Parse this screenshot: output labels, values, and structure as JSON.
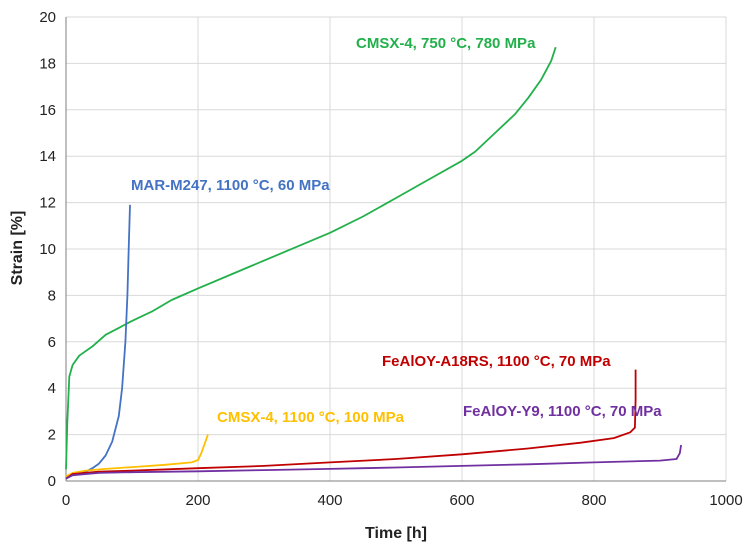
{
  "chart_data": {
    "type": "line",
    "title": "",
    "xlabel": "Time [h]",
    "ylabel": "Strain [%]",
    "xlim": [
      0,
      1000
    ],
    "ylim": [
      0,
      20
    ],
    "xticks": [
      0,
      200,
      400,
      600,
      800,
      1000
    ],
    "yticks": [
      0,
      2,
      4,
      6,
      8,
      10,
      12,
      14,
      16,
      18,
      20
    ],
    "grid": true,
    "legend": "inline labels",
    "series": [
      {
        "name": "CMSX-4, 750 °C, 780 MPa",
        "color": "#22b04b",
        "x": [
          0,
          2,
          5,
          10,
          20,
          40,
          60,
          80,
          100,
          130,
          160,
          200,
          250,
          300,
          350,
          400,
          450,
          500,
          550,
          600,
          620,
          650,
          680,
          700,
          720,
          735,
          742
        ],
        "y": [
          0.5,
          2.5,
          4.5,
          5.0,
          5.4,
          5.8,
          6.3,
          6.6,
          6.9,
          7.3,
          7.8,
          8.3,
          8.9,
          9.5,
          10.1,
          10.7,
          11.4,
          12.2,
          13.0,
          13.8,
          14.2,
          15.0,
          15.8,
          16.5,
          17.3,
          18.1,
          18.7
        ]
      },
      {
        "name": "MAR-M247, 1100 °C, 60 MPa",
        "color": "#4472c4",
        "x": [
          0,
          10,
          20,
          30,
          40,
          50,
          60,
          70,
          80,
          85,
          90,
          93,
          95,
          97
        ],
        "y": [
          0.2,
          0.25,
          0.3,
          0.4,
          0.55,
          0.75,
          1.1,
          1.7,
          2.8,
          4.0,
          6.0,
          8.0,
          10.0,
          11.9
        ]
      },
      {
        "name": "CMSX-4, 1100 °C, 100 MPa",
        "color": "#ffc000",
        "x": [
          0,
          10,
          30,
          60,
          100,
          150,
          190,
          200,
          205,
          210,
          215
        ],
        "y": [
          0.2,
          0.35,
          0.45,
          0.52,
          0.6,
          0.7,
          0.8,
          0.9,
          1.2,
          1.6,
          2.0
        ]
      },
      {
        "name": "FeAlOY-A18RS, 1100 °C, 70 MPa",
        "color": "#c00000",
        "x": [
          0,
          10,
          50,
          100,
          200,
          300,
          400,
          500,
          600,
          700,
          780,
          830,
          855,
          862,
          863,
          863
        ],
        "y": [
          0.1,
          0.3,
          0.4,
          0.45,
          0.55,
          0.65,
          0.8,
          0.95,
          1.15,
          1.4,
          1.65,
          1.85,
          2.1,
          2.3,
          3.5,
          4.8
        ]
      },
      {
        "name": "FeAlOY-Y9, 1100 °C, 70 MPa",
        "color": "#7030a0",
        "x": [
          0,
          10,
          50,
          100,
          200,
          300,
          400,
          450,
          500,
          600,
          700,
          800,
          900,
          925,
          930,
          932
        ],
        "y": [
          0.1,
          0.25,
          0.35,
          0.38,
          0.42,
          0.47,
          0.52,
          0.55,
          0.58,
          0.65,
          0.72,
          0.8,
          0.88,
          0.95,
          1.2,
          1.55
        ]
      }
    ]
  }
}
